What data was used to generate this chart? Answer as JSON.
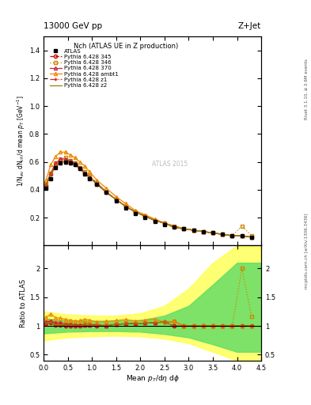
{
  "title_top": "13000 GeV pp",
  "title_right": "Z+Jet",
  "plot_title": "Nch (ATLAS UE in Z production)",
  "xlabel": "Mean $p_T$/d$\\eta$ d$\\phi$",
  "ylabel": "1/N$_{ev}$ dN$_{ch}$/d mean $p_T$ [GeV$^{-1}$]",
  "ylabel_ratio": "Ratio to ATLAS",
  "right_label": "mcplots.cern.ch [arXiv:1306.3436]",
  "right_label2": "Rivet 3.1.10, ≥ 2.6M events",
  "watermark": "ATLAS 2015",
  "atlas_x": [
    0.05,
    0.15,
    0.25,
    0.35,
    0.45,
    0.55,
    0.65,
    0.75,
    0.85,
    0.95,
    1.1,
    1.3,
    1.5,
    1.7,
    1.9,
    2.1,
    2.3,
    2.5,
    2.7,
    2.9,
    3.1,
    3.3,
    3.5,
    3.7,
    3.9,
    4.1,
    4.3
  ],
  "atlas_y": [
    0.41,
    0.48,
    0.56,
    0.59,
    0.6,
    0.59,
    0.58,
    0.55,
    0.51,
    0.48,
    0.44,
    0.38,
    0.32,
    0.27,
    0.23,
    0.2,
    0.17,
    0.15,
    0.13,
    0.12,
    0.11,
    0.1,
    0.09,
    0.08,
    0.07,
    0.07,
    0.06
  ],
  "p345_x": [
    0.05,
    0.15,
    0.25,
    0.35,
    0.45,
    0.55,
    0.65,
    0.75,
    0.85,
    0.95,
    1.1,
    1.3,
    1.5,
    1.7,
    1.9,
    2.1,
    2.3,
    2.5,
    2.7,
    2.9,
    3.1,
    3.3,
    3.5,
    3.7,
    3.9,
    4.1,
    4.3
  ],
  "p345_y": [
    0.43,
    0.51,
    0.57,
    0.6,
    0.6,
    0.59,
    0.58,
    0.55,
    0.52,
    0.49,
    0.44,
    0.38,
    0.33,
    0.28,
    0.24,
    0.21,
    0.18,
    0.16,
    0.13,
    0.12,
    0.11,
    0.1,
    0.09,
    0.08,
    0.07,
    0.07,
    0.06
  ],
  "p345_color": "#cc0000",
  "p345_style": "--",
  "p345_marker": "o",
  "p346_x": [
    0.05,
    0.15,
    0.25,
    0.35,
    0.45,
    0.55,
    0.65,
    0.75,
    0.85,
    0.95,
    1.1,
    1.3,
    1.5,
    1.7,
    1.9,
    2.1,
    2.3,
    2.5,
    2.7,
    2.9,
    3.1,
    3.3,
    3.5,
    3.7,
    3.9,
    4.1,
    4.3
  ],
  "p346_y": [
    0.44,
    0.52,
    0.59,
    0.62,
    0.63,
    0.61,
    0.59,
    0.56,
    0.53,
    0.5,
    0.45,
    0.39,
    0.33,
    0.28,
    0.24,
    0.21,
    0.18,
    0.16,
    0.14,
    0.12,
    0.11,
    0.1,
    0.09,
    0.08,
    0.07,
    0.14,
    0.07
  ],
  "p346_color": "#cc8800",
  "p346_style": ":",
  "p346_marker": "s",
  "p370_x": [
    0.05,
    0.15,
    0.25,
    0.35,
    0.45,
    0.55,
    0.65,
    0.75,
    0.85,
    0.95,
    1.1,
    1.3,
    1.5,
    1.7,
    1.9,
    2.1,
    2.3,
    2.5,
    2.7,
    2.9,
    3.1,
    3.3,
    3.5,
    3.7,
    3.9,
    4.1,
    4.3
  ],
  "p370_y": [
    0.44,
    0.52,
    0.59,
    0.62,
    0.62,
    0.61,
    0.59,
    0.56,
    0.52,
    0.49,
    0.45,
    0.38,
    0.33,
    0.28,
    0.24,
    0.21,
    0.18,
    0.16,
    0.14,
    0.12,
    0.11,
    0.1,
    0.09,
    0.08,
    0.07,
    0.07,
    0.06
  ],
  "p370_color": "#cc2244",
  "p370_style": "-",
  "p370_marker": "^",
  "pambt1_x": [
    0.05,
    0.15,
    0.25,
    0.35,
    0.45,
    0.55,
    0.65,
    0.75,
    0.85,
    0.95,
    1.1,
    1.3,
    1.5,
    1.7,
    1.9,
    2.1,
    2.3,
    2.5,
    2.7,
    2.9,
    3.1,
    3.3,
    3.5,
    3.7,
    3.9,
    4.1,
    4.3
  ],
  "pambt1_y": [
    0.47,
    0.58,
    0.64,
    0.67,
    0.67,
    0.65,
    0.63,
    0.6,
    0.57,
    0.53,
    0.47,
    0.41,
    0.35,
    0.3,
    0.25,
    0.22,
    0.19,
    0.16,
    0.14,
    0.12,
    0.11,
    0.1,
    0.09,
    0.08,
    0.07,
    0.07,
    0.06
  ],
  "pambt1_color": "#ee8800",
  "pambt1_style": "-",
  "pambt1_marker": "^",
  "pz1_x": [
    0.05,
    0.15,
    0.25,
    0.35,
    0.45,
    0.55,
    0.65,
    0.75,
    0.85,
    0.95,
    1.1,
    1.3,
    1.5,
    1.7,
    1.9,
    2.1,
    2.3,
    2.5,
    2.7,
    2.9,
    3.1,
    3.3,
    3.5,
    3.7,
    3.9,
    4.1,
    4.3
  ],
  "pz1_y": [
    0.43,
    0.51,
    0.57,
    0.6,
    0.61,
    0.6,
    0.58,
    0.55,
    0.52,
    0.49,
    0.44,
    0.38,
    0.33,
    0.28,
    0.24,
    0.21,
    0.18,
    0.16,
    0.13,
    0.12,
    0.11,
    0.1,
    0.09,
    0.08,
    0.07,
    0.07,
    0.06
  ],
  "pz1_color": "#dd2222",
  "pz1_style": "-.",
  "pz1_marker": "+",
  "pz2_x": [
    0.05,
    0.15,
    0.25,
    0.35,
    0.45,
    0.55,
    0.65,
    0.75,
    0.85,
    0.95,
    1.1,
    1.3,
    1.5,
    1.7,
    1.9,
    2.1,
    2.3,
    2.5,
    2.7,
    2.9,
    3.1,
    3.3,
    3.5,
    3.7,
    3.9,
    4.1,
    4.3
  ],
  "pz2_y": [
    0.43,
    0.51,
    0.57,
    0.6,
    0.61,
    0.6,
    0.58,
    0.55,
    0.52,
    0.49,
    0.44,
    0.38,
    0.33,
    0.28,
    0.24,
    0.21,
    0.18,
    0.16,
    0.13,
    0.12,
    0.11,
    0.1,
    0.09,
    0.08,
    0.07,
    0.07,
    0.06
  ],
  "pz2_color": "#888800",
  "pz2_style": "-",
  "pz2_marker": null,
  "xlim": [
    0.0,
    4.5
  ],
  "ylim_main": [
    0.0,
    1.5
  ],
  "ylim_ratio": [
    0.4,
    2.4
  ],
  "main_yticks": [
    0.2,
    0.4,
    0.6,
    0.8,
    1.0,
    1.2,
    1.4
  ],
  "ratio_yticks": [
    0.5,
    1.0,
    1.5,
    2.0
  ],
  "ratio_band_x": [
    0.0,
    0.5,
    1.0,
    1.5,
    2.0,
    2.5,
    3.0,
    3.5,
    4.0,
    4.5
  ],
  "ratio_band_yel_lo": [
    0.75,
    0.8,
    0.82,
    0.83,
    0.82,
    0.78,
    0.7,
    0.55,
    0.4,
    0.4
  ],
  "ratio_band_yel_hi": [
    1.25,
    1.2,
    1.18,
    1.18,
    1.22,
    1.35,
    1.65,
    2.1,
    2.4,
    2.4
  ],
  "ratio_band_grn_lo": [
    0.87,
    0.9,
    0.91,
    0.91,
    0.9,
    0.86,
    0.8,
    0.68,
    0.55,
    0.55
  ],
  "ratio_band_grn_hi": [
    1.13,
    1.1,
    1.09,
    1.09,
    1.1,
    1.18,
    1.35,
    1.72,
    2.1,
    2.1
  ]
}
